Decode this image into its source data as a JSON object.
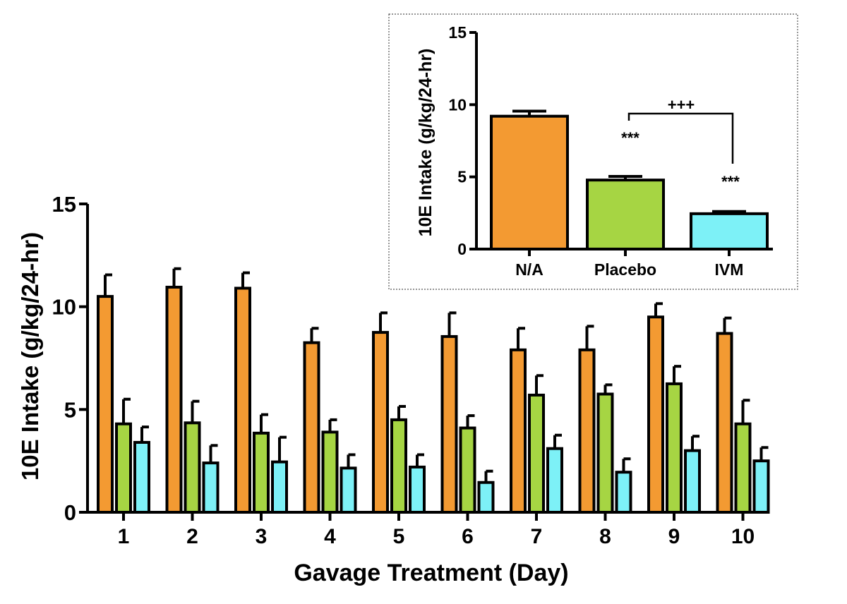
{
  "chart_data": [
    {
      "type": "bar",
      "title": "",
      "xlabel": "Gavage Treatment (Day)",
      "ylabel": "10E Intake (g/kg/24-hr)",
      "ylim": [
        0,
        15
      ],
      "yticks": [
        0,
        5,
        10,
        15
      ],
      "categories": [
        "1",
        "2",
        "3",
        "4",
        "5",
        "6",
        "7",
        "8",
        "9",
        "10"
      ],
      "series": [
        {
          "name": "N/A",
          "color": "#F39A32",
          "values": [
            10.5,
            10.95,
            10.9,
            8.25,
            8.75,
            8.55,
            7.9,
            7.9,
            9.5,
            8.7
          ],
          "errors": [
            1.05,
            0.9,
            0.75,
            0.7,
            0.95,
            1.15,
            1.05,
            1.15,
            0.65,
            0.75
          ]
        },
        {
          "name": "Placebo",
          "color": "#A6D543",
          "values": [
            4.3,
            4.35,
            3.85,
            3.9,
            4.5,
            4.1,
            5.7,
            5.75,
            6.25,
            4.3
          ],
          "errors": [
            1.2,
            1.05,
            0.9,
            0.6,
            0.65,
            0.6,
            0.95,
            0.45,
            0.85,
            1.15
          ]
        },
        {
          "name": "IVM",
          "color": "#7DF1F7",
          "values": [
            3.4,
            2.4,
            2.45,
            2.15,
            2.2,
            1.45,
            3.1,
            1.95,
            3.0,
            2.5
          ],
          "errors": [
            0.75,
            0.85,
            1.2,
            0.65,
            0.6,
            0.55,
            0.65,
            0.65,
            0.7,
            0.65
          ]
        }
      ]
    },
    {
      "type": "bar",
      "title": "",
      "xlabel": "",
      "ylabel": "10E Intake (g/kg/24-hr)",
      "ylim": [
        0,
        15
      ],
      "yticks": [
        0,
        5,
        10,
        15
      ],
      "categories": [
        "N/A",
        "Placebo",
        "IVM"
      ],
      "values": [
        9.2,
        4.78,
        2.45
      ],
      "errors": [
        0.35,
        0.25,
        0.15
      ],
      "colors": [
        "#F39A32",
        "#A6D543",
        "#7DF1F7"
      ],
      "annotations": {
        "placebo_sig": "***",
        "ivm_sig": "***",
        "bracket_sig": "+++"
      }
    }
  ]
}
